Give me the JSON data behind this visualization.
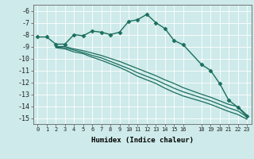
{
  "xlabel": "Humidex (Indice chaleur)",
  "xlim": [
    -0.5,
    23.5
  ],
  "ylim": [
    -15.5,
    -5.5
  ],
  "yticks": [
    -6,
    -7,
    -8,
    -9,
    -10,
    -11,
    -12,
    -13,
    -14,
    -15
  ],
  "xticks": [
    0,
    1,
    2,
    3,
    4,
    5,
    6,
    7,
    8,
    9,
    10,
    11,
    12,
    13,
    14,
    15,
    16,
    18,
    19,
    20,
    21,
    22,
    23
  ],
  "bg_color": "#ceeaea",
  "grid_color": "#ffffff",
  "line_color": "#1a6e5e",
  "lines": [
    {
      "x": [
        0,
        1,
        2,
        3,
        4,
        5,
        6,
        7,
        8,
        9,
        10,
        11,
        12,
        13,
        14,
        15,
        16,
        18,
        19,
        20,
        21,
        22,
        23
      ],
      "y": [
        -8.2,
        -8.2,
        -8.8,
        -8.8,
        -8.0,
        -8.1,
        -7.7,
        -7.8,
        -8.0,
        -7.8,
        -6.9,
        -6.75,
        -6.3,
        -7.0,
        -7.5,
        -8.5,
        -8.85,
        -10.5,
        -11.0,
        -12.1,
        -13.5,
        -14.1,
        -14.85
      ],
      "marker": "D",
      "markersize": 2.5,
      "linewidth": 1.0
    },
    {
      "x": [
        2,
        3,
        4,
        5,
        6,
        7,
        8,
        9,
        10,
        11,
        12,
        13,
        14,
        15,
        16,
        18,
        19,
        20,
        21,
        22,
        23
      ],
      "y": [
        -9.0,
        -9.0,
        -9.2,
        -9.35,
        -9.55,
        -9.75,
        -10.0,
        -10.25,
        -10.55,
        -10.85,
        -11.15,
        -11.45,
        -11.8,
        -12.1,
        -12.45,
        -13.0,
        -13.25,
        -13.55,
        -13.85,
        -14.05,
        -14.75
      ],
      "marker": null,
      "markersize": 0,
      "linewidth": 0.9
    },
    {
      "x": [
        2,
        3,
        4,
        5,
        6,
        7,
        8,
        9,
        10,
        11,
        12,
        13,
        14,
        15,
        16,
        18,
        19,
        20,
        21,
        22,
        23
      ],
      "y": [
        -9.05,
        -9.1,
        -9.3,
        -9.5,
        -9.75,
        -9.95,
        -10.25,
        -10.55,
        -10.85,
        -11.2,
        -11.5,
        -11.8,
        -12.15,
        -12.5,
        -12.8,
        -13.3,
        -13.55,
        -13.85,
        -14.15,
        -14.4,
        -14.9
      ],
      "marker": null,
      "markersize": 0,
      "linewidth": 0.9
    },
    {
      "x": [
        2,
        3,
        4,
        5,
        6,
        7,
        8,
        9,
        10,
        11,
        12,
        13,
        14,
        15,
        16,
        18,
        19,
        20,
        21,
        22,
        23
      ],
      "y": [
        -9.1,
        -9.2,
        -9.45,
        -9.6,
        -9.9,
        -10.15,
        -10.45,
        -10.75,
        -11.1,
        -11.5,
        -11.8,
        -12.1,
        -12.5,
        -12.85,
        -13.15,
        -13.6,
        -13.85,
        -14.15,
        -14.45,
        -14.7,
        -15.1
      ],
      "marker": null,
      "markersize": 0,
      "linewidth": 0.9
    }
  ]
}
